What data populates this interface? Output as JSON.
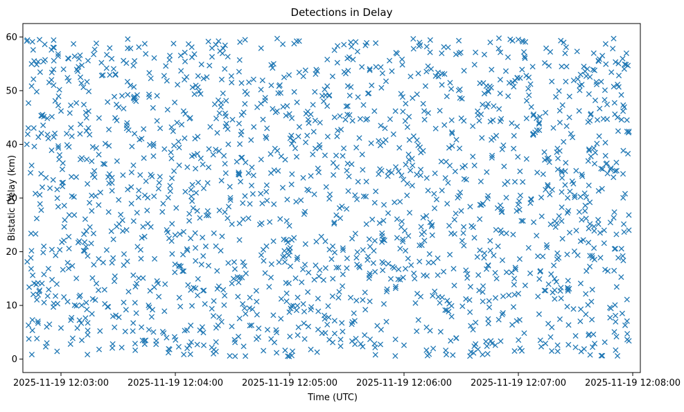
{
  "chart_data": {
    "type": "scatter",
    "title": "Detections in Delay",
    "xlabel": "Time (UTC)",
    "ylabel": "Bistatic Delay (km)",
    "x_axis_type": "datetime",
    "xlim": [
      "2025-11-19 12:02:40",
      "2025-11-19 12:08:04"
    ],
    "ylim": [
      -2.5,
      62.5
    ],
    "x_ticks": [
      "2025-11-19 12:03:00",
      "2025-11-19 12:04:00",
      "2025-11-19 12:05:00",
      "2025-11-19 12:06:00",
      "2025-11-19 12:07:00",
      "2025-11-19 12:08:00"
    ],
    "x_tick_labels": [
      "2025-11-19 12:03:00",
      "2025-11-19 12:04:00",
      "2025-11-19 12:05:00",
      "2025-11-19 12:06:00",
      "2025-11-19 12:07:00",
      "2025-11-19 12:08:00"
    ],
    "y_ticks": [
      0,
      10,
      20,
      30,
      40,
      50,
      60
    ],
    "y_tick_labels": [
      "0",
      "10",
      "20",
      "30",
      "40",
      "50",
      "60"
    ],
    "grid": false,
    "legend": "none",
    "marker": "x",
    "color": "#1f77b4",
    "x_range": [
      "2025-11-19 12:02:42",
      "2025-11-19 12:07:58"
    ],
    "y_range": [
      0.5,
      59.8
    ],
    "point_count_estimate": 1800,
    "series": [
      {
        "points": [
          [
            "2025-11-19 12:02:45",
            59.1
          ],
          [
            "2025-11-19 12:02:48",
            55.4
          ],
          [
            "2025-11-19 12:02:50",
            45.3
          ],
          [
            "2025-11-19 12:02:44",
            34.7
          ],
          [
            "2025-11-19 12:02:46",
            39.6
          ],
          [
            "2025-11-19 12:02:49",
            28.9
          ],
          [
            "2025-11-19 12:02:51",
            21.0
          ],
          [
            "2025-11-19 12:02:47",
            13.9
          ],
          [
            "2025-11-19 12:02:45",
            7.3
          ],
          [
            "2025-11-19 12:02:52",
            2.3
          ],
          [
            "2025-11-19 12:02:55",
            57.6
          ],
          [
            "2025-11-19 12:02:57",
            48.1
          ],
          [
            "2025-11-19 12:02:59",
            37.2
          ],
          [
            "2025-11-19 12:03:01",
            36.5
          ],
          [
            "2025-11-19 12:02:58",
            31.6
          ],
          [
            "2025-11-19 12:03:02",
            25.9
          ],
          [
            "2025-11-19 12:03:04",
            16.9
          ],
          [
            "2025-11-19 12:02:56",
            9.7
          ],
          [
            "2025-11-19 12:03:00",
            5.8
          ],
          [
            "2025-11-19 12:03:05",
            2.8
          ],
          [
            "2025-11-19 12:03:10",
            56.6
          ],
          [
            "2025-11-19 12:03:12",
            47.4
          ],
          [
            "2025-11-19 12:03:15",
            41.8
          ],
          [
            "2025-11-19 12:03:08",
            33.9
          ],
          [
            "2025-11-19 12:03:14",
            19.2
          ],
          [
            "2025-11-19 12:03:18",
            11.0
          ],
          [
            "2025-11-19 12:03:20",
            1.8
          ],
          [
            "2025-11-19 12:03:22",
            52.9
          ],
          [
            "2025-11-19 12:03:25",
            27.4
          ],
          [
            "2025-11-19 12:03:28",
            14.5
          ],
          [
            "2025-11-19 12:03:35",
            57.9
          ],
          [
            "2025-11-19 12:03:40",
            49.2
          ],
          [
            "2025-11-19 12:03:38",
            36.1
          ],
          [
            "2025-11-19 12:03:44",
            30.5
          ],
          [
            "2025-11-19 12:03:42",
            18.7
          ],
          [
            "2025-11-19 12:03:48",
            9.2
          ],
          [
            "2025-11-19 12:03:50",
            3.4
          ],
          [
            "2025-11-19 12:03:55",
            54.6
          ],
          [
            "2025-11-19 12:03:58",
            43.2
          ],
          [
            "2025-11-19 12:03:56",
            23.6
          ],
          [
            "2025-11-19 12:04:05",
            57.1
          ],
          [
            "2025-11-19 12:04:10",
            56.8
          ],
          [
            "2025-11-19 12:04:02",
            39.4
          ],
          [
            "2025-11-19 12:04:12",
            32.9
          ],
          [
            "2025-11-19 12:04:08",
            22.5
          ],
          [
            "2025-11-19 12:04:15",
            12.8
          ],
          [
            "2025-11-19 12:04:20",
            1.0
          ],
          [
            "2025-11-19 12:04:25",
            49.5
          ],
          [
            "2025-11-19 12:04:30",
            44.6
          ],
          [
            "2025-11-19 12:04:28",
            28.4
          ],
          [
            "2025-11-19 12:04:35",
            15.2
          ],
          [
            "2025-11-19 12:04:40",
            6.3
          ],
          [
            "2025-11-19 12:04:45",
            57.9
          ],
          [
            "2025-11-19 12:04:50",
            38.2
          ],
          [
            "2025-11-19 12:04:55",
            26.1
          ],
          [
            "2025-11-19 12:04:52",
            3.1
          ],
          [
            "2025-11-19 12:05:05",
            53.4
          ],
          [
            "2025-11-19 12:05:02",
            40.7
          ],
          [
            "2025-11-19 12:05:10",
            31.4
          ],
          [
            "2025-11-19 12:05:08",
            17.6
          ],
          [
            "2025-11-19 12:05:15",
            8.9
          ],
          [
            "2025-11-19 12:05:25",
            55.2
          ],
          [
            "2025-11-19 12:05:30",
            35.1
          ],
          [
            "2025-11-19 12:05:28",
            20.3
          ],
          [
            "2025-11-19 12:05:35",
            10.9
          ],
          [
            "2025-11-19 12:05:42",
            53.8
          ],
          [
            "2025-11-19 12:05:45",
            0.8
          ],
          [
            "2025-11-19 12:05:50",
            43.0
          ],
          [
            "2025-11-19 12:05:55",
            29.2
          ],
          [
            "2025-11-19 12:05:58",
            14.8
          ],
          [
            "2025-11-19 12:06:05",
            57.8
          ],
          [
            "2025-11-19 12:06:10",
            38.8
          ],
          [
            "2025-11-19 12:06:12",
            15.5
          ],
          [
            "2025-11-19 12:06:15",
            11.8
          ],
          [
            "2025-11-19 12:06:18",
            11.6
          ],
          [
            "2025-11-19 12:06:20",
            11.5
          ],
          [
            "2025-11-19 12:06:25",
            44.5
          ],
          [
            "2025-11-19 12:06:30",
            27.6
          ],
          [
            "2025-11-19 12:06:35",
            6.2
          ],
          [
            "2025-11-19 12:06:45",
            50.8
          ],
          [
            "2025-11-19 12:06:48",
            11.4
          ],
          [
            "2025-11-19 12:06:52",
            11.7
          ],
          [
            "2025-11-19 12:06:55",
            11.9
          ],
          [
            "2025-11-19 12:06:58",
            12.0
          ],
          [
            "2025-11-19 12:07:00",
            12.2
          ],
          [
            "2025-11-19 12:07:02",
            59.3
          ],
          [
            "2025-11-19 12:06:58",
            1.5
          ],
          [
            "2025-11-19 12:07:08",
            45.6
          ],
          [
            "2025-11-19 12:07:12",
            30.1
          ],
          [
            "2025-11-19 12:07:15",
            20.8
          ],
          [
            "2025-11-19 12:07:18",
            12.4
          ],
          [
            "2025-11-19 12:07:22",
            12.7
          ],
          [
            "2025-11-19 12:07:26",
            13.0
          ],
          [
            "2025-11-19 12:07:30",
            2.2
          ],
          [
            "2025-11-19 12:07:35",
            53.6
          ],
          [
            "2025-11-19 12:07:40",
            36.4
          ],
          [
            "2025-11-19 12:07:45",
            24.0
          ],
          [
            "2025-11-19 12:07:48",
            9.6
          ],
          [
            "2025-11-19 12:07:50",
            59.7
          ],
          [
            "2025-11-19 12:07:52",
            0.6
          ],
          [
            "2025-11-19 12:07:55",
            47.3
          ],
          [
            "2025-11-19 12:07:56",
            30.8
          ],
          [
            "2025-11-19 12:07:57",
            11.1
          ],
          [
            "2025-11-19 12:07:58",
            3.4
          ],
          [
            "2025-11-19 12:07:58",
            42.4
          ]
        ]
      }
    ]
  }
}
